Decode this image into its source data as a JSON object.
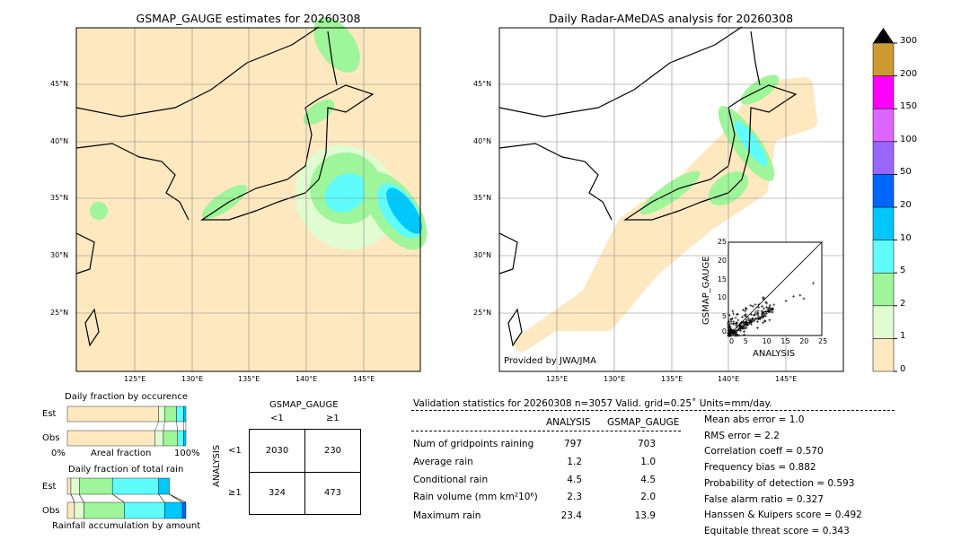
{
  "left_map": {
    "title": "GSMAP_GAUGE estimates for 20260308"
  },
  "right_map": {
    "title": "Daily Radar-AMeDAS analysis for 20260308",
    "credit": "Provided by JWA/JMA"
  },
  "lat_labels": [
    "45°N",
    "40°N",
    "35°N",
    "30°N",
    "25°N"
  ],
  "lon_labels": [
    "125°E",
    "130°E",
    "135°E",
    "140°E",
    "145°E"
  ],
  "colorbar": {
    "labels": [
      "0",
      "1",
      "2",
      "5",
      "10",
      "20",
      "50",
      "100",
      "150",
      "200",
      "300"
    ],
    "colors": [
      "#fee8c0",
      "#e0fcd0",
      "#9ef59a",
      "#60fcfc",
      "#00c8fc",
      "#0066ff",
      "#9966ff",
      "#dd66ff",
      "#ff00ff",
      "#cc9933"
    ]
  },
  "scatter": {
    "xlabel": "ANALYSIS",
    "ylabel": "GSMAP_GAUGE",
    "ticks": [
      "0",
      "5",
      "10",
      "15",
      "20",
      "25"
    ]
  },
  "occurrence": {
    "title": "Daily fraction by occurence",
    "rows": [
      "Est",
      "Obs"
    ],
    "xmin": "0%",
    "xlabel": "Areal fraction",
    "xmax": "100%",
    "est": [
      0.77,
      0.05,
      0.1,
      0.06,
      0.02
    ],
    "obs": [
      0.74,
      0.07,
      0.12,
      0.05,
      0.02
    ]
  },
  "rainfrac": {
    "title": "Daily fraction of total rain",
    "rows": [
      "Est",
      "Obs"
    ],
    "xlabel": "Rainfall accumulation by amount",
    "est": [
      0.03,
      0.07,
      0.28,
      0.39,
      0.09,
      0
    ],
    "obs": [
      0.06,
      0.08,
      0.34,
      0.34,
      0.15,
      0.03
    ]
  },
  "contingency": {
    "col_title": "GSMAP_GAUGE",
    "row_title": "ANALYSIS",
    "cols": [
      "<1",
      "≥1"
    ],
    "rows": [
      "<1",
      "≥1"
    ],
    "cells": [
      [
        "2030",
        "230"
      ],
      [
        "324",
        "473"
      ]
    ]
  },
  "validation": {
    "header": "Validation statistics for 20260308  n=3057 Valid. grid=0.25˚ Units=mm/day.",
    "col_analysis": "ANALYSIS",
    "col_gsmap": "GSMAP_GAUGE",
    "rows": [
      {
        "label": "Num of gridpoints raining",
        "a": "797",
        "g": "703"
      },
      {
        "label": "Average rain",
        "a": "1.2",
        "g": "1.0"
      },
      {
        "label": "Conditional rain",
        "a": "4.5",
        "g": "4.5"
      },
      {
        "label": "Rain volume (mm km²10⁶)",
        "a": "2.3",
        "g": "2.0"
      },
      {
        "label": "Maximum rain",
        "a": "23.4",
        "g": "13.9"
      }
    ],
    "scores": [
      "Mean abs error =    1.0",
      "RMS error =    2.2",
      "Correlation coeff =  0.570",
      "Frequency bias =  0.882",
      "Probability of detection =  0.593",
      "False alarm ratio =  0.327",
      "Hanssen & Kuipers score =  0.492",
      "Equitable threat score =  0.343"
    ]
  }
}
